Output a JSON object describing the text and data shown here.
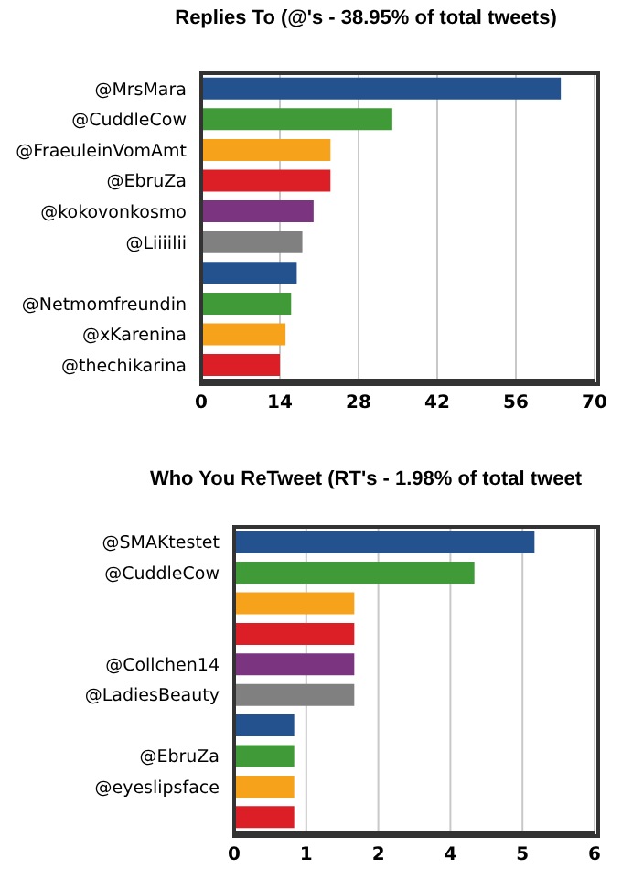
{
  "chart_data": [
    {
      "type": "bar",
      "orientation": "horizontal",
      "title": "Replies To (@'s - 38.95% of total tweets)",
      "categories": [
        "@MrsMara",
        "@CuddleCow",
        "@FraeuleinVomAmt",
        "@EbruZa",
        "@kokovonkosmo",
        "@Liiiilii",
        null,
        "@Netmomfreundin",
        "@xKarenina",
        "@thechikarina"
      ],
      "values": [
        64,
        34,
        23,
        23,
        20,
        18,
        17,
        16,
        15,
        14
      ],
      "colors": [
        "#23528e",
        "#3f9a37",
        "#f7a21b",
        "#dc1f26",
        "#7b3580",
        "#808080",
        "#23528e",
        "#3f9a37",
        "#f7a21b",
        "#dc1f26"
      ],
      "xlim": [
        0,
        70
      ],
      "xticks": [
        0,
        14,
        28,
        42,
        56,
        70
      ],
      "grid": "x",
      "legend": false
    },
    {
      "type": "bar",
      "orientation": "horizontal",
      "title": "Who You ReTweet (RT's - 1.98% of total tweet",
      "categories": [
        "@SMAKtestet",
        "@CuddleCow",
        null,
        null,
        "@Collchen14",
        "@LadiesBeauty",
        null,
        "@EbruZa",
        "@eyeslipsface",
        null
      ],
      "values": [
        5,
        4,
        2,
        2,
        2,
        2,
        1,
        1,
        1,
        1
      ],
      "colors": [
        "#23528e",
        "#3f9a37",
        "#f7a21b",
        "#dc1f26",
        "#7b3580",
        "#808080",
        "#23528e",
        "#3f9a37",
        "#f7a21b",
        "#dc1f26"
      ],
      "xlim": [
        0,
        6
      ],
      "xticks": [
        0,
        {
          "value": 1.2,
          "label": "1"
        },
        {
          "value": 2.4,
          "label": "2"
        },
        {
          "value": 3.6,
          "label": "4"
        },
        {
          "value": 4.8,
          "label": "5"
        },
        6
      ],
      "grid": "x",
      "legend": false
    }
  ]
}
